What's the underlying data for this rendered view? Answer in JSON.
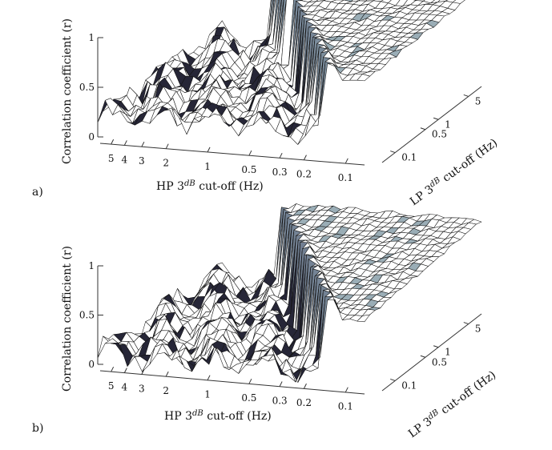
{
  "chart_data": [
    {
      "type": "surface",
      "panel_label": "a)",
      "xlabel_main": "HP 3",
      "xlabel_sup": "dB",
      "xlabel_tail": " cut-off (Hz)",
      "ylabel_main": "LP 3",
      "ylabel_sup": "dB",
      "ylabel_tail": " cut-off (Hz)",
      "zlabel": "Correlation coefficient (r)",
      "hp_ticks": [
        "5",
        "4",
        "3",
        "2",
        "1",
        "0.5",
        "0.3",
        "0.2",
        "0.1"
      ],
      "hp_tick_values": [
        5,
        4,
        3,
        2,
        1,
        0.5,
        0.3,
        0.2,
        0.1
      ],
      "lp_ticks": [
        "0.1",
        "0.5",
        "1",
        "5"
      ],
      "lp_tick_values": [
        0.1,
        0.5,
        1,
        5
      ],
      "z_ticks": [
        "0",
        "0.5",
        "1"
      ],
      "z_tick_values": [
        0,
        0.5,
        1
      ],
      "zlim": [
        0,
        1
      ],
      "hp_range_hz": [
        0.07,
        6
      ],
      "lp_range_hz": [
        0.05,
        10
      ],
      "grid": false,
      "colormap": "bone",
      "surface_profile": {
        "r_below_ridge": 0.3,
        "r_ridge": 1.0,
        "r_plateau_low_lp": 0.85,
        "r_plateau_high_lp": 1.0,
        "ridge_hp_hz_at_low_lp": 0.12,
        "ridge_hp_hz_at_high_lp": 2.0
      }
    },
    {
      "type": "surface",
      "panel_label": "b)",
      "xlabel_main": "HP 3",
      "xlabel_sup": "dB",
      "xlabel_tail": " cut-off (Hz)",
      "ylabel_main": "LP 3",
      "ylabel_sup": "dB",
      "ylabel_tail": " cut-off (Hz)",
      "zlabel": "Correlation coefficient (r)",
      "hp_ticks": [
        "5",
        "4",
        "3",
        "2",
        "1",
        "0.5",
        "0.3",
        "0.2",
        "0.1"
      ],
      "hp_tick_values": [
        5,
        4,
        3,
        2,
        1,
        0.5,
        0.3,
        0.2,
        0.1
      ],
      "lp_ticks": [
        "0.1",
        "0.5",
        "1",
        "5"
      ],
      "lp_tick_values": [
        0.1,
        0.5,
        1,
        5
      ],
      "z_ticks": [
        "0",
        "0.5",
        "1"
      ],
      "z_tick_values": [
        0,
        0.5,
        1
      ],
      "zlim": [
        0,
        1
      ],
      "hp_range_hz": [
        0.07,
        6
      ],
      "lp_range_hz": [
        0.05,
        10
      ],
      "grid": false,
      "colormap": "bone",
      "surface_profile": {
        "r_below_ridge": 0.18,
        "r_ridge": 0.95,
        "r_plateau_low_lp": 0.75,
        "r_plateau_high_lp": 0.95,
        "ridge_hp_hz_at_low_lp": 0.12,
        "ridge_hp_hz_at_high_lp": 1.8
      }
    }
  ]
}
